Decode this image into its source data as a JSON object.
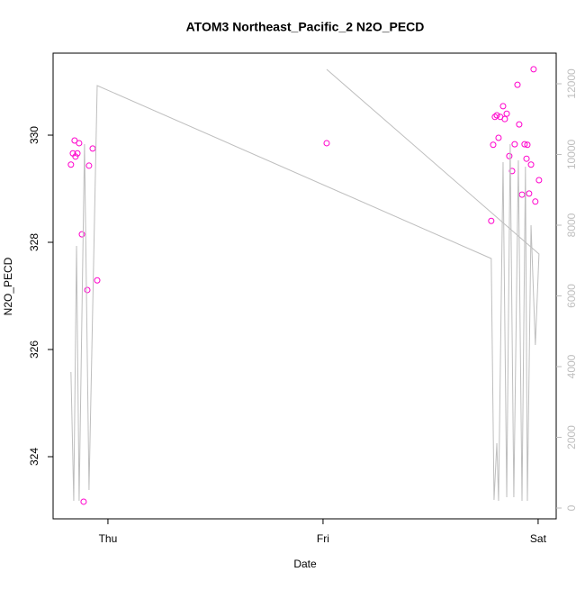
{
  "chart_data": {
    "type": "scatter",
    "title": "ATOM3 Northeast_Pacific_2 N2O_PECD",
    "x_label": "Date",
    "y_label": "N2O_PECD",
    "xlim": [
      -0.255,
      2.084
    ],
    "xticks": [
      {
        "value": 0,
        "label": "Thu"
      },
      {
        "value": 1,
        "label": "Fri"
      },
      {
        "value": 2,
        "label": "Sat"
      }
    ],
    "ylim": [
      322.84,
      331.53
    ],
    "yticks": [
      324,
      326,
      328,
      330
    ],
    "y2lim": [
      -306,
      12866
    ],
    "y2ticks": [
      0,
      2000,
      4000,
      6000,
      8000,
      10000,
      12000
    ],
    "y2_color": "#bebebe",
    "series": [
      {
        "name": "N2O_PECD",
        "color": "#ff00cc",
        "x": [
          -0.172,
          -0.163,
          -0.155,
          -0.151,
          -0.142,
          -0.134,
          -0.121,
          -0.113,
          -0.096,
          -0.088,
          -0.071,
          -0.05,
          1.017,
          1.782,
          1.791,
          1.799,
          1.808,
          1.816,
          1.824,
          1.837,
          1.845,
          1.854,
          1.866,
          1.879,
          1.891,
          1.904,
          1.912,
          1.925,
          1.937,
          1.946,
          1.95,
          1.958,
          1.967,
          1.979,
          1.987,
          2.004
        ],
        "values": [
          329.45,
          329.66,
          329.9,
          329.6,
          329.66,
          329.85,
          328.15,
          323.16,
          327.11,
          329.43,
          329.75,
          327.29,
          329.85,
          328.4,
          329.82,
          330.34,
          330.37,
          329.95,
          330.34,
          330.54,
          330.3,
          330.4,
          329.61,
          329.33,
          329.83,
          330.94,
          330.2,
          328.89,
          329.83,
          329.56,
          329.82,
          328.91,
          329.45,
          331.23,
          328.76,
          329.16
        ]
      },
      {
        "axis": "y2",
        "color": "#bebebe",
        "x": [
          -0.172,
          -0.159,
          -0.146,
          -0.134,
          -0.109,
          -0.088,
          -0.05,
          1.782,
          1.795,
          1.808,
          1.816,
          1.837,
          1.854,
          1.87,
          1.887,
          1.908,
          1.925,
          1.941,
          1.95,
          1.967,
          1.987,
          2.004,
          1.017
        ],
        "values": [
          3847,
          204,
          7414,
          204,
          10293,
          510,
          11949,
          7057,
          229,
          1834,
          204,
          9783,
          306,
          10293,
          306,
          9834,
          204,
          9656,
          204,
          8000,
          4611,
          7185,
          12407
        ]
      }
    ]
  }
}
